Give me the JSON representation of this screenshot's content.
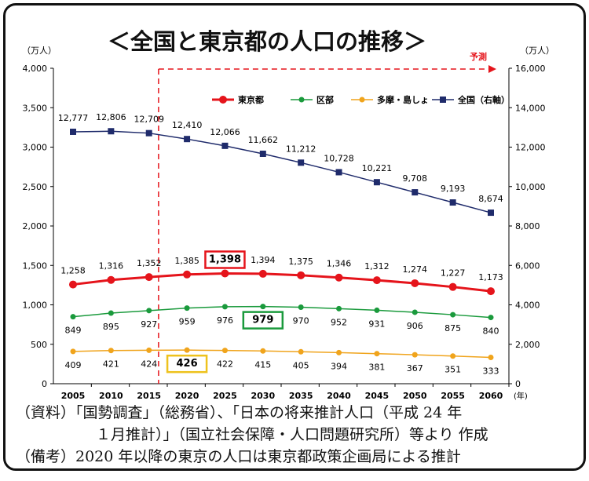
{
  "title": "＜全国と東京都の人口の推移＞",
  "forecast_label": "予測",
  "notes": [
    "（資料）「国勢調査」（総務省）、「日本の将来推計人口（平成 24 年",
    "１月推計）」（国立社会保障・人口問題研究所）等より 作成",
    "（備考）2020 年以降の東京の人口は東京都政策企画局による推計"
  ],
  "chart_data": {
    "type": "line",
    "title": "＜全国と東京都の人口の推移＞",
    "xlabel": "(年)",
    "ylabel_left": "（万人）",
    "ylabel_right": "（万人）",
    "ylim_left": [
      0,
      4000
    ],
    "ylim_right": [
      0,
      16000
    ],
    "left_ticks": [
      "0",
      "500",
      "1,000",
      "1,500",
      "2,000",
      "2,500",
      "3,000",
      "3,500",
      "4,000"
    ],
    "right_ticks": [
      "0",
      "2,000",
      "4,000",
      "6,000",
      "8,000",
      "10,000",
      "12,000",
      "14,000",
      "16,000"
    ],
    "grid": false,
    "legend_position": "top-right",
    "categories": [
      "2005",
      "2010",
      "2015",
      "2020",
      "2025",
      "2030",
      "2035",
      "2040",
      "2045",
      "2050",
      "2055",
      "2060"
    ],
    "series": [
      {
        "name": "東京都",
        "axis": "left",
        "color": "#e5141b",
        "values": [
          1258,
          1316,
          1352,
          1385,
          1398,
          1394,
          1375,
          1346,
          1312,
          1274,
          1227,
          1173
        ],
        "labels": [
          "1,258",
          "1,316",
          "1,352",
          "1,385",
          "1,398",
          "1,394",
          "1,375",
          "1,346",
          "1,312",
          "1,274",
          "1,227",
          "1,173"
        ],
        "highlight_index": 4,
        "highlight_color": "#e5141b",
        "label_pos": "above"
      },
      {
        "name": "区部",
        "axis": "left",
        "color": "#1a9a3c",
        "values": [
          849,
          895,
          927,
          959,
          976,
          979,
          970,
          952,
          931,
          906,
          875,
          840
        ],
        "labels": [
          "849",
          "895",
          "927",
          "959",
          "976",
          "979",
          "970",
          "952",
          "931",
          "906",
          "875",
          "840"
        ],
        "highlight_index": 5,
        "highlight_color": "#1a9a3c",
        "label_pos": "below"
      },
      {
        "name": "多摩・島しょ",
        "axis": "left",
        "color": "#f0a41c",
        "values": [
          409,
          421,
          424,
          426,
          422,
          415,
          405,
          394,
          381,
          367,
          351,
          333
        ],
        "labels": [
          "409",
          "421",
          "424",
          "426",
          "422",
          "415",
          "405",
          "394",
          "381",
          "367",
          "351",
          "333"
        ],
        "highlight_index": 3,
        "highlight_color": "#eec21e",
        "label_pos": "below"
      },
      {
        "name": "全国（右軸）",
        "axis": "right",
        "color": "#1f2b6b",
        "values": [
          12777,
          12806,
          12709,
          12410,
          12066,
          11662,
          11212,
          10728,
          10221,
          9708,
          9193,
          8674
        ],
        "labels": [
          "12,777",
          "12,806",
          "12,709",
          "12,410",
          "12,066",
          "11,662",
          "11,212",
          "10,728",
          "10,221",
          "9,708",
          "9,193",
          "8,674"
        ],
        "highlight_index": null,
        "label_pos": "above"
      }
    ]
  }
}
